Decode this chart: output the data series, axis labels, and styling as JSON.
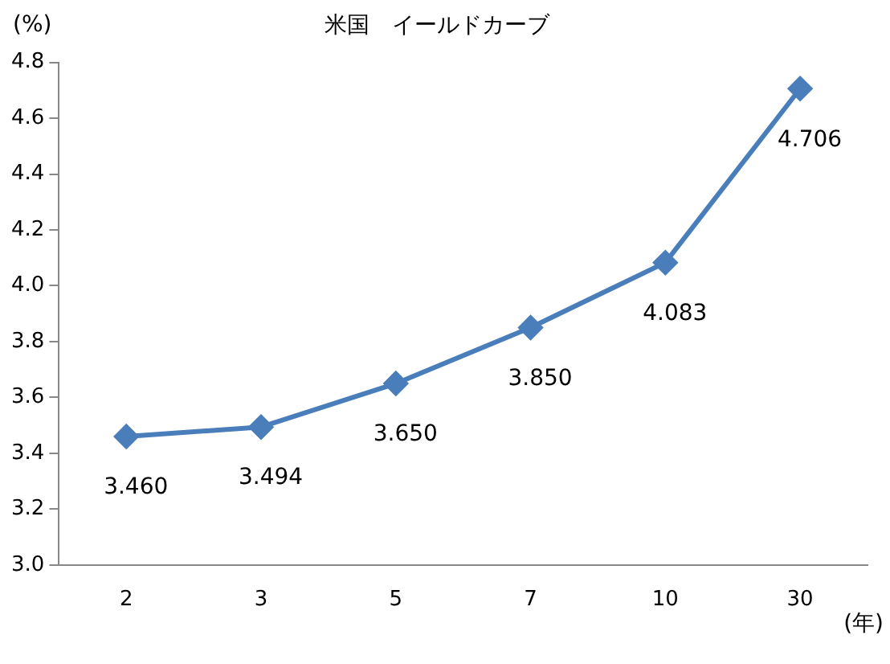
{
  "chart_data": {
    "type": "line",
    "title": "米国　イールドカーブ",
    "xlabel": "(年)",
    "ylabel": "(%)",
    "categories": [
      "2",
      "3",
      "5",
      "7",
      "10",
      "30"
    ],
    "series": [
      {
        "color": "#4a7ebb",
        "values": [
          3.46,
          3.494,
          3.65,
          3.85,
          4.083,
          4.706
        ]
      }
    ],
    "value_labels": [
      "3.460",
      "3.494",
      "3.650",
      "3.850",
      "4.083",
      "4.706"
    ],
    "ylim": [
      3.0,
      4.8
    ],
    "yticks": [
      {
        "value": 3.0,
        "label": "3.0"
      },
      {
        "value": 3.2,
        "label": "3.2"
      },
      {
        "value": 3.4,
        "label": "3.4"
      },
      {
        "value": 3.6,
        "label": "3.6"
      },
      {
        "value": 3.8,
        "label": "3.8"
      },
      {
        "value": 4.0,
        "label": "4.0"
      },
      {
        "value": 4.2,
        "label": "4.2"
      },
      {
        "value": 4.4,
        "label": "4.4"
      },
      {
        "value": 4.6,
        "label": "4.6"
      },
      {
        "value": 4.8,
        "label": "4.8"
      }
    ],
    "grid": false,
    "legend": false,
    "marker": "diamond",
    "line_style": "solid"
  }
}
